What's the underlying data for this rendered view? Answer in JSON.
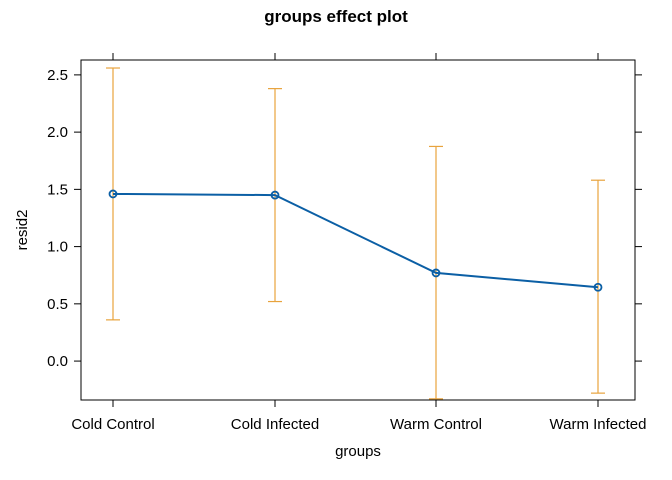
{
  "chart_data": {
    "type": "line",
    "title": "groups effect plot",
    "xlabel": "groups",
    "ylabel": "resid2",
    "categories": [
      "Cold Control",
      "Cold Infected",
      "Warm Control",
      "Warm Infected"
    ],
    "y_ticks": [
      "0.0",
      "0.5",
      "1.0",
      "1.5",
      "2.0",
      "2.5"
    ],
    "ylim": [
      -0.34,
      2.63
    ],
    "series": [
      {
        "values": [
          1.46,
          1.45,
          0.77,
          0.645
        ],
        "lower": [
          0.36,
          0.52,
          -0.33,
          -0.28
        ],
        "upper": [
          2.56,
          2.38,
          1.875,
          1.58
        ]
      }
    ],
    "colors": {
      "line": "#0B5FA5",
      "error_bar": "#E8A33D",
      "frame": "#000000"
    },
    "grid": false,
    "legend": "none"
  }
}
